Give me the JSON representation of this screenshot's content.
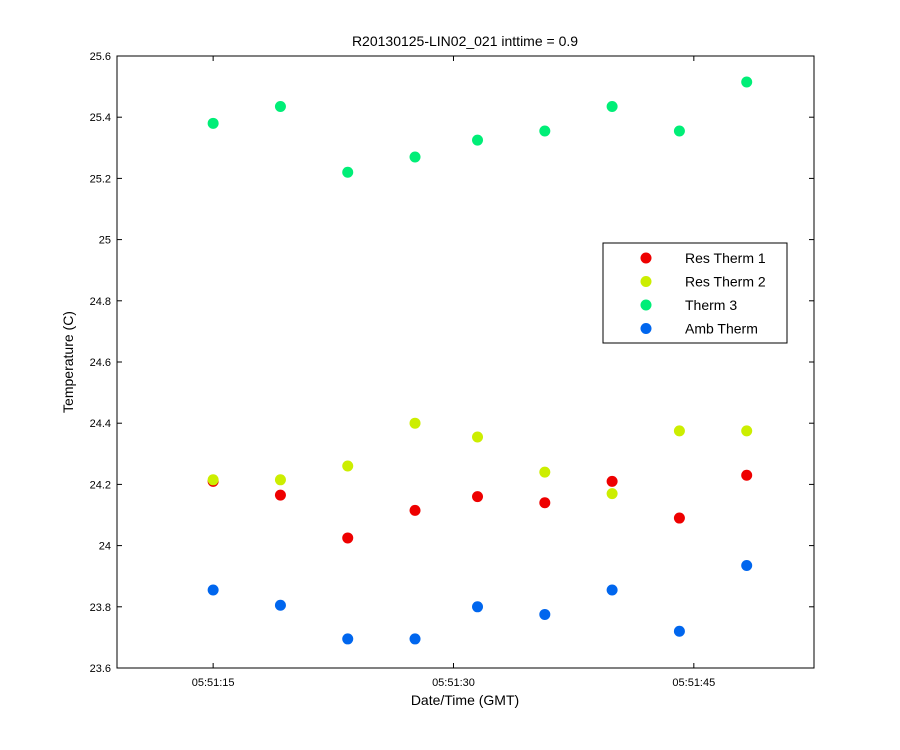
{
  "chart_data": {
    "type": "scatter",
    "title": "R20130125-LIN02_021 inttime = 0.9",
    "xlabel": "Date/Time (GMT)",
    "ylabel": "Temperature (C)",
    "x_unit": "seconds after 05:51:00 GMT",
    "xlim": [
      9,
      52.5
    ],
    "ylim": [
      23.6,
      25.6
    ],
    "x_ticks": [
      15,
      30,
      45
    ],
    "x_tick_labels": [
      "05:51:15",
      "05:51:30",
      "05:51:45"
    ],
    "y_ticks": [
      23.6,
      23.8,
      24,
      24.2,
      24.4,
      24.6,
      24.8,
      25,
      25.2,
      25.4,
      25.6
    ],
    "y_tick_labels": [
      "23.6",
      "23.8",
      "24",
      "24.2",
      "24.4",
      "24.6",
      "24.8",
      "25",
      "25.2",
      "25.4",
      "25.6"
    ],
    "x": [
      15,
      19.2,
      23.4,
      27.6,
      31.5,
      35.7,
      39.9,
      44.1,
      48.3
    ],
    "series": [
      {
        "name": "Res Therm 1",
        "color": "#ee0000",
        "values": [
          24.21,
          24.165,
          24.025,
          24.115,
          24.16,
          24.14,
          24.21,
          24.09,
          24.23
        ]
      },
      {
        "name": "Res Therm 2",
        "color": "#ccee00",
        "values": [
          24.215,
          24.215,
          24.26,
          24.4,
          24.355,
          24.24,
          24.17,
          24.375,
          24.375
        ]
      },
      {
        "name": "Therm 3",
        "color": "#00ee77",
        "values": [
          25.38,
          25.435,
          25.22,
          25.27,
          25.325,
          25.355,
          25.435,
          25.355,
          25.515
        ]
      },
      {
        "name": "Amb Therm",
        "color": "#0066ee",
        "values": [
          23.855,
          23.805,
          23.695,
          23.695,
          23.8,
          23.775,
          23.855,
          23.72,
          23.935
        ]
      }
    ],
    "legend_position": "right",
    "grid": false
  }
}
